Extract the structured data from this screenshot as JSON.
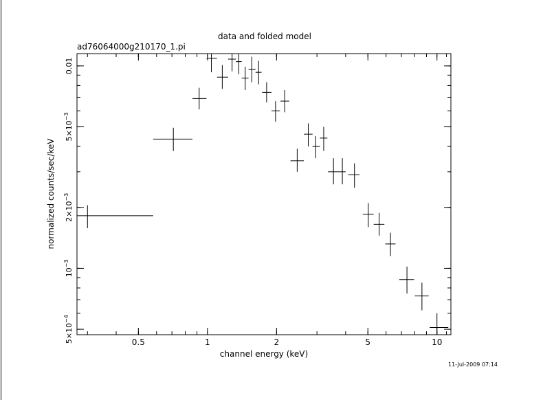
{
  "chart_data": {
    "type": "scatter",
    "title": "data and folded model",
    "subtitle": "ad76064000g210170_1.pi",
    "xlabel": "channel energy (keV)",
    "ylabel": "normalized counts/sec/keV",
    "timestamp": "11-Jul-2009 07:14",
    "x_scale": "log",
    "y_scale": "log",
    "xlim": [
      0.27,
      11.5
    ],
    "ylim": [
      0.00047,
      0.0115
    ],
    "grid": false,
    "legend": "none",
    "x_ticks": [
      {
        "value": 0.5,
        "label": "0.5"
      },
      {
        "value": 1,
        "label": "1"
      },
      {
        "value": 2,
        "label": "2"
      },
      {
        "value": 5,
        "label": "5"
      },
      {
        "value": 10,
        "label": "10"
      }
    ],
    "y_ticks": [
      {
        "value": 0.0005,
        "label": "5×10",
        "exp": "−4"
      },
      {
        "value": 0.001,
        "label": "10",
        "exp": "−3"
      },
      {
        "value": 0.002,
        "label": "2×10",
        "exp": "−3"
      },
      {
        "value": 0.005,
        "label": "5×10",
        "exp": "−3"
      },
      {
        "value": 0.01,
        "label": "0.01",
        "exp": ""
      }
    ],
    "series": [
      {
        "points": [
          {
            "x": 0.3,
            "x_lo": 0.27,
            "x_hi": 0.58,
            "y": 0.00182,
            "y_lo": 0.00158,
            "y_hi": 0.00205
          },
          {
            "x": 0.71,
            "x_lo": 0.58,
            "x_hi": 0.86,
            "y": 0.00435,
            "y_lo": 0.0038,
            "y_hi": 0.00495
          },
          {
            "x": 0.92,
            "x_lo": 0.86,
            "x_hi": 0.99,
            "y": 0.0069,
            "y_lo": 0.0061,
            "y_hi": 0.0078
          },
          {
            "x": 1.04,
            "x_lo": 0.99,
            "x_hi": 1.1,
            "y": 0.0109,
            "y_lo": 0.0093,
            "y_hi": 0.0125
          },
          {
            "x": 1.16,
            "x_lo": 1.1,
            "x_hi": 1.23,
            "y": 0.0088,
            "y_lo": 0.0077,
            "y_hi": 0.0101
          },
          {
            "x": 1.28,
            "x_lo": 1.23,
            "x_hi": 1.33,
            "y": 0.0108,
            "y_lo": 0.0094,
            "y_hi": 0.0125
          },
          {
            "x": 1.37,
            "x_lo": 1.33,
            "x_hi": 1.41,
            "y": 0.0105,
            "y_lo": 0.0091,
            "y_hi": 0.0119
          },
          {
            "x": 1.46,
            "x_lo": 1.41,
            "x_hi": 1.51,
            "y": 0.0087,
            "y_lo": 0.0076,
            "y_hi": 0.0099
          },
          {
            "x": 1.56,
            "x_lo": 1.51,
            "x_hi": 1.62,
            "y": 0.0096,
            "y_lo": 0.0083,
            "y_hi": 0.0111
          },
          {
            "x": 1.67,
            "x_lo": 1.62,
            "x_hi": 1.72,
            "y": 0.0093,
            "y_lo": 0.0081,
            "y_hi": 0.0106
          },
          {
            "x": 1.81,
            "x_lo": 1.73,
            "x_hi": 1.9,
            "y": 0.0074,
            "y_lo": 0.0066,
            "y_hi": 0.0083
          },
          {
            "x": 1.98,
            "x_lo": 1.9,
            "x_hi": 2.07,
            "y": 0.006,
            "y_lo": 0.0053,
            "y_hi": 0.0067
          },
          {
            "x": 2.17,
            "x_lo": 2.08,
            "x_hi": 2.27,
            "y": 0.0067,
            "y_lo": 0.0059,
            "y_hi": 0.0076
          },
          {
            "x": 2.46,
            "x_lo": 2.3,
            "x_hi": 2.63,
            "y": 0.0034,
            "y_lo": 0.003,
            "y_hi": 0.0039
          },
          {
            "x": 2.75,
            "x_lo": 2.63,
            "x_hi": 2.87,
            "y": 0.0046,
            "y_lo": 0.004,
            "y_hi": 0.0052
          },
          {
            "x": 2.96,
            "x_lo": 2.87,
            "x_hi": 3.09,
            "y": 0.004,
            "y_lo": 0.0035,
            "y_hi": 0.0045
          },
          {
            "x": 3.21,
            "x_lo": 3.09,
            "x_hi": 3.33,
            "y": 0.0044,
            "y_lo": 0.0038,
            "y_hi": 0.005
          },
          {
            "x": 3.54,
            "x_lo": 3.35,
            "x_hi": 3.75,
            "y": 0.003,
            "y_lo": 0.0026,
            "y_hi": 0.0035
          },
          {
            "x": 3.87,
            "x_lo": 3.75,
            "x_hi": 4.0,
            "y": 0.003,
            "y_lo": 0.0026,
            "y_hi": 0.0035
          },
          {
            "x": 4.37,
            "x_lo": 4.1,
            "x_hi": 4.6,
            "y": 0.0029,
            "y_lo": 0.0025,
            "y_hi": 0.0033
          },
          {
            "x": 5.02,
            "x_lo": 4.75,
            "x_hi": 5.3,
            "y": 0.00185,
            "y_lo": 0.0016,
            "y_hi": 0.0021
          },
          {
            "x": 5.6,
            "x_lo": 5.3,
            "x_hi": 5.9,
            "y": 0.00165,
            "y_lo": 0.00145,
            "y_hi": 0.00188
          },
          {
            "x": 6.27,
            "x_lo": 5.95,
            "x_hi": 6.6,
            "y": 0.00132,
            "y_lo": 0.00115,
            "y_hi": 0.0015
          },
          {
            "x": 7.4,
            "x_lo": 6.85,
            "x_hi": 7.95,
            "y": 0.00088,
            "y_lo": 0.00075,
            "y_hi": 0.00102
          },
          {
            "x": 8.6,
            "x_lo": 8.0,
            "x_hi": 9.2,
            "y": 0.00073,
            "y_lo": 0.00062,
            "y_hi": 0.00085
          },
          {
            "x": 10.0,
            "x_lo": 9.3,
            "x_hi": 11.2,
            "y": 0.00051,
            "y_lo": 0.00043,
            "y_hi": 0.0006
          }
        ]
      }
    ]
  }
}
